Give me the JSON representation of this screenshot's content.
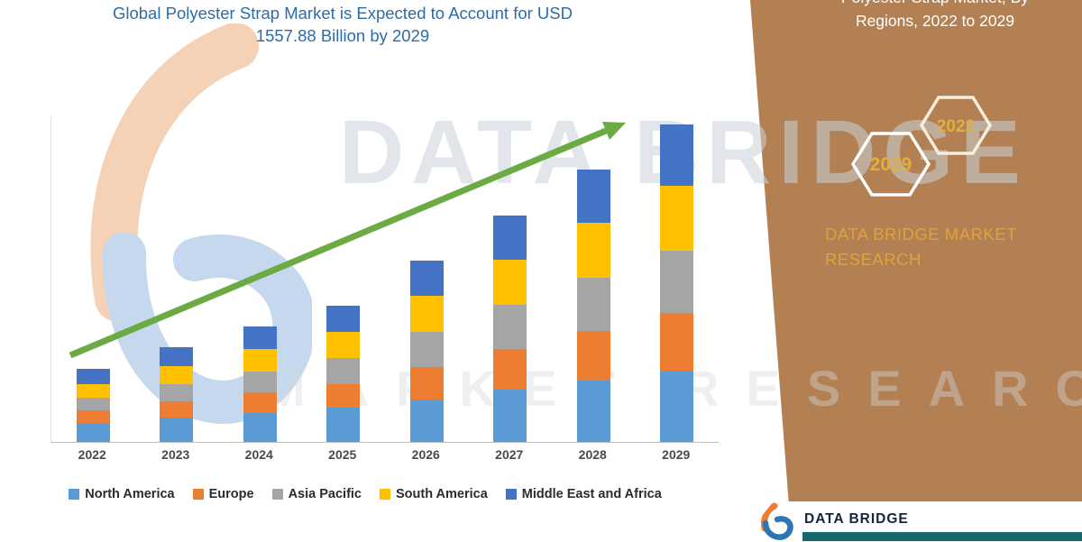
{
  "title": {
    "line1": "Global Polyester Strap Market is Expected to Account for USD",
    "line2": "1557.88 Billion by 2029"
  },
  "chart_data": {
    "type": "bar",
    "stacked": true,
    "title": "Global Polyester Strap Market is Expected to Account for USD 1557.88 Billion by 2029",
    "unit": "USD Billion",
    "categories": [
      "2022",
      "2023",
      "2024",
      "2025",
      "2026",
      "2027",
      "2028",
      "2029"
    ],
    "series": [
      {
        "name": "North America",
        "color": "#5B9BD5",
        "values": [
          95,
          118,
          142,
          166,
          210,
          256,
          302,
          350
        ]
      },
      {
        "name": "Europe",
        "color": "#ED7D31",
        "values": [
          60,
          80,
          99,
          118,
          158,
          199,
          240,
          280
        ]
      },
      {
        "name": "Asia Pacific",
        "color": "#A5A5A5",
        "values": [
          62,
          84,
          104,
          125,
          170,
          215,
          262,
          308
        ]
      },
      {
        "name": "South America",
        "color": "#FFC000",
        "values": [
          68,
          90,
          111,
          132,
          178,
          224,
          270,
          317
        ]
      },
      {
        "name": "Middle East and Africa",
        "color": "#4472C4",
        "values": [
          72,
          92,
          110,
          128,
          172,
          215,
          260,
          302.88
        ]
      }
    ],
    "total_2029": 1557.88,
    "ylim": [
      0,
      1600
    ],
    "grid": false,
    "legend_position": "bottom",
    "trend_arrow": true
  },
  "watermarks": {
    "brand": "DATA BRIDGE",
    "sub": "MARKET RESEARCH"
  },
  "side_panel": {
    "heading_line1": "Polyester Strap Market, By",
    "heading_line2": "Regions, 2022 to 2029",
    "hexagons": [
      "2029",
      "2022"
    ],
    "brand_line1": "DATA BRIDGE MARKET",
    "brand_line2": "RESEARCH",
    "bg_color": "#B28052",
    "accent_color": "#DFA23B"
  },
  "footer": {
    "brand": "DATA BRIDGE",
    "bar_color": "#17696F"
  },
  "colors": {
    "title_text": "#2E6CA8",
    "trend_arrow": "#6CAB44",
    "axis_label": "#4A4A4A"
  }
}
